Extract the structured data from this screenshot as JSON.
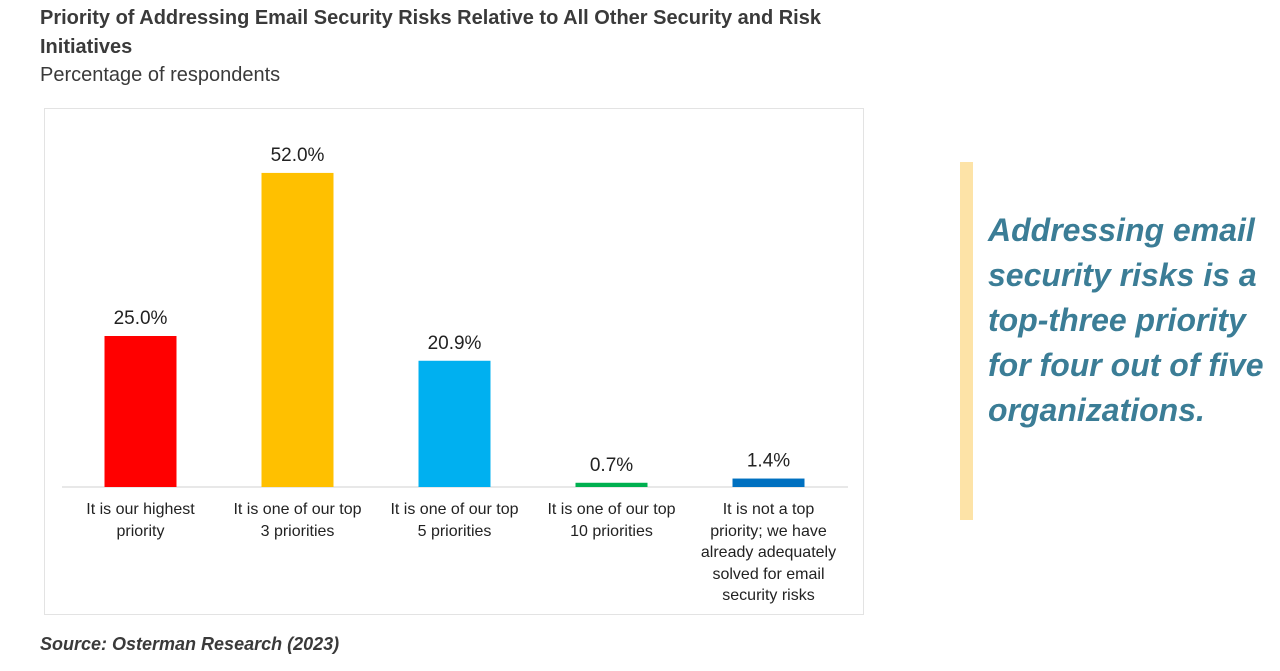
{
  "chart_data": {
    "type": "bar",
    "title": "Priority of Addressing Email Security Risks Relative to All Other Security and Risk Initiatives",
    "subtitle": "Percentage of respondents",
    "categories": [
      "It is our highest priority",
      "It is one of our top 3 priorities",
      "It is one of our top 5 priorities",
      "It is one of our top 10 priorities",
      "It is not a top priority; we have already adequately solved for email security risks"
    ],
    "values": [
      25.0,
      52.0,
      20.9,
      0.7,
      1.4
    ],
    "value_labels": [
      "25.0%",
      "52.0%",
      "20.9%",
      "0.7%",
      "1.4%"
    ],
    "colors": [
      "#ff0000",
      "#ffc000",
      "#00b0f0",
      "#00b050",
      "#0070c0"
    ],
    "callout": "Addressing email security risks is a top-three priority for four out of five organizations.",
    "source": "Source: Osterman Research (2023)"
  }
}
